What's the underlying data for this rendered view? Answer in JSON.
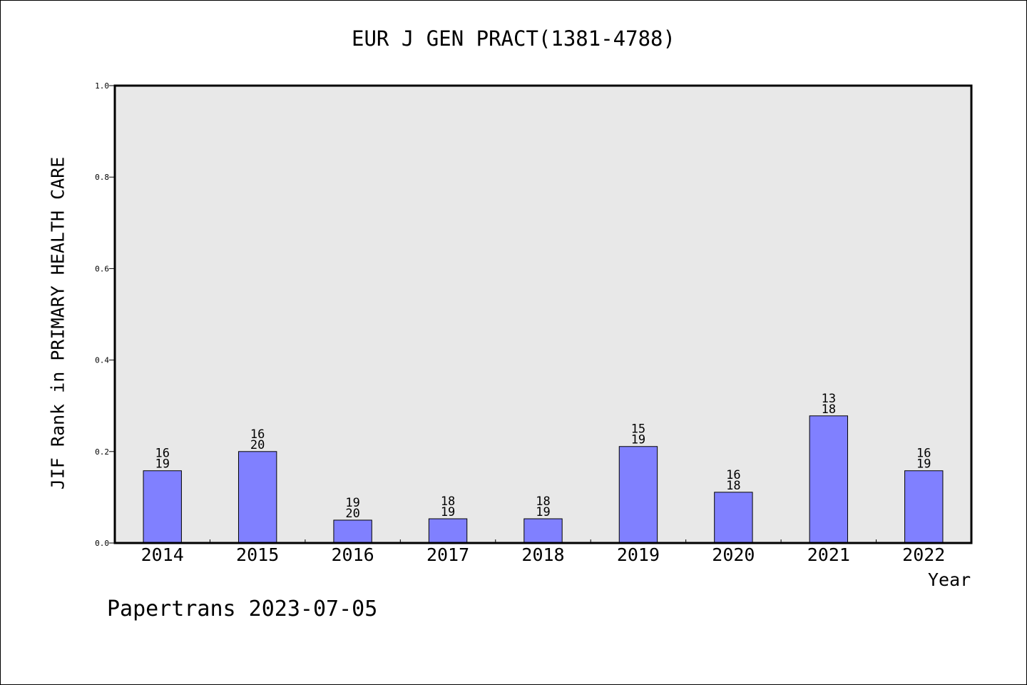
{
  "chart_data": {
    "type": "bar",
    "title": "EUR J GEN PRACT(1381-4788)",
    "xlabel": "Year",
    "ylabel": "JIF Rank in PRIMARY HEALTH CARE",
    "ylim": [
      0,
      1.0
    ],
    "yticks": [
      0.0,
      0.2,
      0.4,
      0.6,
      0.8,
      1.0
    ],
    "grid": false,
    "legend": "none",
    "categories": [
      "2014",
      "2015",
      "2016",
      "2017",
      "2018",
      "2019",
      "2020",
      "2021",
      "2022"
    ],
    "values": [
      0.158,
      0.2,
      0.05,
      0.053,
      0.053,
      0.211,
      0.111,
      0.278,
      0.158
    ],
    "rank_labels": [
      {
        "rank": "16",
        "total": "19"
      },
      {
        "rank": "16",
        "total": "20"
      },
      {
        "rank": "19",
        "total": "20"
      },
      {
        "rank": "18",
        "total": "19"
      },
      {
        "rank": "18",
        "total": "19"
      },
      {
        "rank": "15",
        "total": "19"
      },
      {
        "rank": "16",
        "total": "18"
      },
      {
        "rank": "13",
        "total": "18"
      },
      {
        "rank": "16",
        "total": "19"
      }
    ],
    "colors": {
      "bar_fill": "#8080ff",
      "bar_stroke": "#000000",
      "plot_background": "#e8e8e8"
    }
  },
  "footer": {
    "credit": "Papertrans 2023-07-05"
  }
}
